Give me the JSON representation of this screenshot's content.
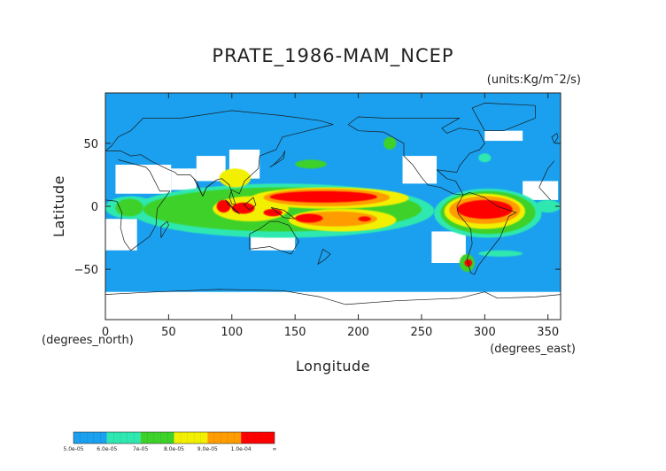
{
  "chart_data": {
    "type": "heatmap",
    "title": "PRATE_1986-MAM_NCEP",
    "units_label": "(units:Kg/m¯2/s)",
    "xlabel": "Longitude",
    "ylabel": "Latitude",
    "x_unit_label": "(degrees_east)",
    "y_unit_label": "(degrees_north)",
    "xlim": [
      0,
      360
    ],
    "ylim": [
      -90,
      90
    ],
    "x_ticks": [
      0,
      50,
      100,
      150,
      200,
      250,
      300,
      350
    ],
    "y_ticks": [
      -50,
      0,
      50
    ],
    "grid": false,
    "background_level_color": "#1aa0ef",
    "colorbar": {
      "labels": [
        "5.0e-05",
        "6.0e-05",
        "7e-05",
        "8.0e-05",
        "9.0e-05",
        "1.0e-04",
        "∞"
      ],
      "colors": [
        "#1aa0ef",
        "#2ee8b0",
        "#3ed12a",
        "#f2f000",
        "#ff9c00",
        "#ff0000"
      ]
    },
    "regions": [
      {
        "level": 5,
        "lon": [
          130,
          215
        ],
        "lat": [
          3,
          12
        ]
      },
      {
        "level": 5,
        "lon": [
          278,
          322
        ],
        "lat": [
          -10,
          5
        ]
      },
      {
        "level": 5,
        "lon": [
          88,
          99
        ],
        "lat": [
          -5,
          5
        ]
      },
      {
        "level": 5,
        "lon": [
          100,
          118
        ],
        "lat": [
          -6,
          3
        ]
      },
      {
        "level": 5,
        "lon": [
          125,
          140
        ],
        "lat": [
          -8,
          -2
        ]
      },
      {
        "level": 5,
        "lon": [
          150,
          172
        ],
        "lat": [
          -13,
          -6
        ]
      },
      {
        "level": 5,
        "lon": [
          200,
          210
        ],
        "lat": [
          -12,
          -8
        ]
      },
      {
        "level": 5,
        "lon": [
          284,
          290
        ],
        "lat": [
          -48,
          -42
        ]
      },
      {
        "level": 4,
        "lon": [
          125,
          225
        ],
        "lat": [
          0,
          14
        ]
      },
      {
        "level": 4,
        "lon": [
          272,
          328
        ],
        "lat": [
          -14,
          8
        ]
      },
      {
        "level": 4,
        "lon": [
          150,
          215
        ],
        "lat": [
          -16,
          -4
        ]
      },
      {
        "level": 3,
        "lon": [
          115,
          240
        ],
        "lat": [
          -2,
          15
        ]
      },
      {
        "level": 3,
        "lon": [
          268,
          332
        ],
        "lat": [
          -18,
          10
        ]
      },
      {
        "level": 3,
        "lon": [
          85,
          145
        ],
        "lat": [
          -12,
          8
        ]
      },
      {
        "level": 3,
        "lon": [
          145,
          230
        ],
        "lat": [
          -20,
          -2
        ]
      },
      {
        "level": 3,
        "lon": [
          90,
          115
        ],
        "lat": [
          15,
          30
        ]
      },
      {
        "level": 2,
        "lon": [
          30,
          250
        ],
        "lat": [
          -20,
          15
        ]
      },
      {
        "level": 2,
        "lon": [
          265,
          340
        ],
        "lat": [
          -22,
          12
        ]
      },
      {
        "level": 2,
        "lon": [
          8,
          30
        ],
        "lat": [
          -8,
          6
        ]
      },
      {
        "level": 2,
        "lon": [
          280,
          292
        ],
        "lat": [
          -52,
          -38
        ]
      },
      {
        "level": 2,
        "lon": [
          150,
          175
        ],
        "lat": [
          30,
          37
        ]
      },
      {
        "level": 2,
        "lon": [
          220,
          230
        ],
        "lat": [
          45,
          55
        ]
      },
      {
        "level": 1,
        "lon": [
          20,
          260
        ],
        "lat": [
          -25,
          18
        ]
      },
      {
        "level": 1,
        "lon": [
          260,
          345
        ],
        "lat": [
          -25,
          14
        ]
      },
      {
        "level": 1,
        "lon": [
          0,
          40
        ],
        "lat": [
          -10,
          8
        ]
      },
      {
        "level": 1,
        "lon": [
          340,
          360
        ],
        "lat": [
          -5,
          5
        ]
      },
      {
        "level": 1,
        "lon": [
          295,
          330
        ],
        "lat": [
          -40,
          -35
        ]
      },
      {
        "level": 1,
        "lon": [
          295,
          305
        ],
        "lat": [
          35,
          42
        ]
      }
    ],
    "blank_regions": [
      {
        "lon": [
          8,
          52
        ],
        "lat": [
          10,
          33
        ]
      },
      {
        "lon": [
          52,
          72
        ],
        "lat": [
          13,
          30
        ]
      },
      {
        "lon": [
          72,
          95
        ],
        "lat": [
          20,
          40
        ]
      },
      {
        "lon": [
          98,
          122
        ],
        "lat": [
          22,
          45
        ]
      },
      {
        "lon": [
          0,
          25
        ],
        "lat": [
          -35,
          -10
        ]
      },
      {
        "lon": [
          115,
          150
        ],
        "lat": [
          -35,
          -18
        ]
      },
      {
        "lon": [
          235,
          262
        ],
        "lat": [
          18,
          40
        ]
      },
      {
        "lon": [
          258,
          285
        ],
        "lat": [
          -45,
          -20
        ]
      },
      {
        "lon": [
          330,
          358
        ],
        "lat": [
          5,
          20
        ]
      },
      {
        "lon": [
          300,
          330
        ],
        "lat": [
          52,
          60
        ]
      },
      {
        "lon": [
          0,
          360
        ],
        "lat": [
          -90,
          -68
        ]
      }
    ]
  }
}
